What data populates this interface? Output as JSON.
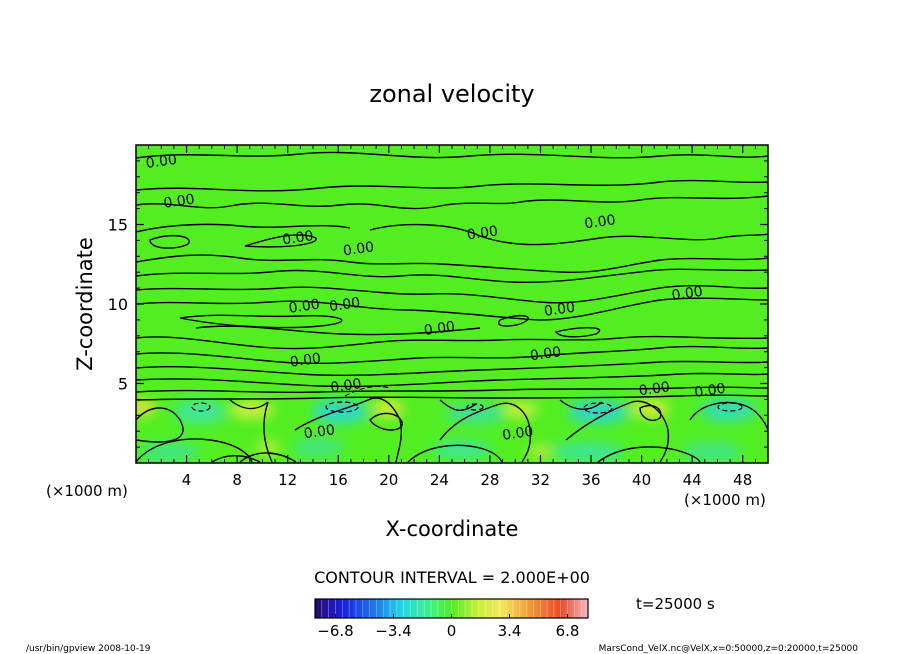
{
  "chart_data": {
    "type": "contour",
    "title": "zonal velocity",
    "xlabel": "X-coordinate",
    "ylabel": "Z-coordinate",
    "x_unit_left": "(×1000 m)",
    "x_unit_right": "(×1000 m)",
    "xlim": [
      0,
      50
    ],
    "ylim": [
      0,
      20
    ],
    "x_ticks": [
      4,
      8,
      12,
      16,
      20,
      24,
      28,
      32,
      36,
      40,
      44,
      48
    ],
    "y_ticks": [
      5,
      10,
      15
    ],
    "contour_interval_text": "CONTOUR INTERVAL = 2.000E+00",
    "time_text": "t=25000 s",
    "contour_labels": [
      {
        "x": 2.0,
        "z": 19.0,
        "text": "0.00"
      },
      {
        "x": 3.4,
        "z": 16.5,
        "text": "0.00"
      },
      {
        "x": 12.8,
        "z": 14.2,
        "text": "0.00"
      },
      {
        "x": 17.6,
        "z": 13.5,
        "text": "0.00"
      },
      {
        "x": 27.4,
        "z": 14.5,
        "text": "0.00"
      },
      {
        "x": 36.7,
        "z": 15.2,
        "text": "0.00"
      },
      {
        "x": 13.3,
        "z": 9.9,
        "text": "0.00"
      },
      {
        "x": 16.5,
        "z": 10.0,
        "text": "0.00"
      },
      {
        "x": 24.0,
        "z": 8.5,
        "text": "0.00"
      },
      {
        "x": 33.5,
        "z": 9.7,
        "text": "0.00"
      },
      {
        "x": 43.6,
        "z": 10.7,
        "text": "0.00"
      },
      {
        "x": 13.4,
        "z": 6.5,
        "text": "0.00"
      },
      {
        "x": 32.4,
        "z": 6.9,
        "text": "0.00"
      },
      {
        "x": 16.6,
        "z": 4.9,
        "text": "0.00"
      },
      {
        "x": 41.0,
        "z": 4.7,
        "text": "0.00"
      },
      {
        "x": 45.4,
        "z": 4.6,
        "text": "0.00"
      },
      {
        "x": 14.5,
        "z": 2.0,
        "text": "0.00"
      },
      {
        "x": 30.2,
        "z": 1.9,
        "text": "0.00"
      }
    ],
    "colorbar": {
      "min": -8.0,
      "max": 8.0,
      "tick_labels": [
        "−6.8",
        "−3.4",
        "0",
        "3.4",
        "6.8"
      ],
      "tick_values": [
        -6.8,
        -3.4,
        0,
        3.4,
        6.8
      ]
    }
  },
  "footer": {
    "left": "/usr/bin/gpview   2008-10-19",
    "right": "MarsCond_VelX.nc@VelX,x=0:50000,z=0:20000,t=25000"
  }
}
